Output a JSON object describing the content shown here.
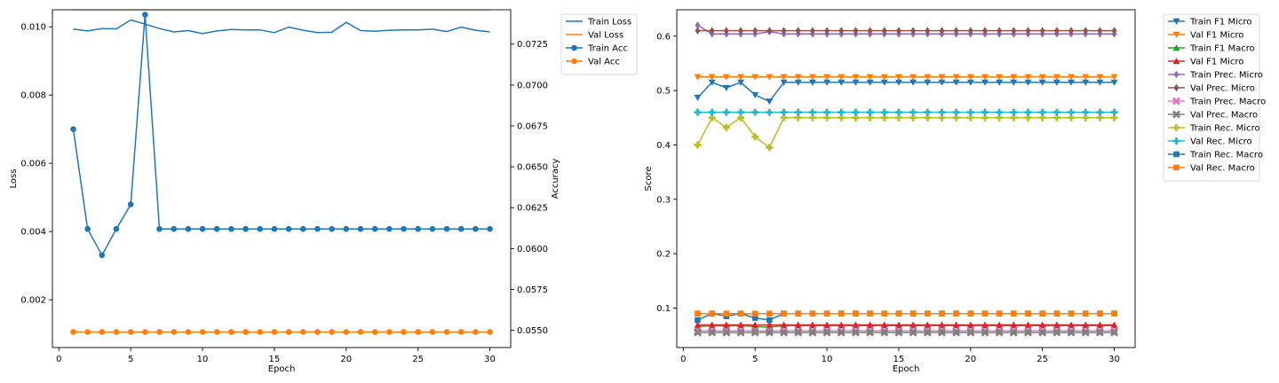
{
  "colors": {
    "blue": "#1f77b4",
    "orange": "#ff7f0e",
    "green": "#2ca02c",
    "red": "#d62728",
    "purple": "#9467bd",
    "brown": "#8c564b",
    "pink": "#e377c2",
    "gray": "#7f7f7f",
    "olive": "#bcbd22",
    "cyan": "#17becf"
  },
  "chart_data": [
    {
      "type": "line",
      "xlabel": "Epoch",
      "ylabel": "Loss",
      "y2label": "Accuracy",
      "xlim": [
        -0.45,
        31.45
      ],
      "ylim": [
        0.0006,
        0.0105
      ],
      "y2lim": [
        0.05395,
        0.0746
      ],
      "xticks": [
        0,
        5,
        10,
        15,
        20,
        25,
        30
      ],
      "yticks": [
        0.002,
        0.004,
        0.006,
        0.008,
        0.01
      ],
      "ytick_labels": [
        "0.002",
        "0.004",
        "0.006",
        "0.008",
        "0.010"
      ],
      "y2ticks": [
        0.055,
        0.0575,
        0.06,
        0.0625,
        0.065,
        0.0675,
        0.07,
        0.0725
      ],
      "y2tick_labels": [
        "0.0550",
        "0.0575",
        "0.0600",
        "0.0625",
        "0.0650",
        "0.0675",
        "0.0700",
        "0.0725"
      ],
      "legend_position": "outside-right",
      "legend": [
        "Train Loss",
        "Val Loss",
        "Train Acc",
        "Val Acc"
      ],
      "x": [
        1,
        2,
        3,
        4,
        5,
        6,
        7,
        8,
        9,
        10,
        11,
        12,
        13,
        14,
        15,
        16,
        17,
        18,
        19,
        20,
        21,
        22,
        23,
        24,
        25,
        26,
        27,
        28,
        29,
        30
      ],
      "series": [
        {
          "name": "Train Loss",
          "axis": "left",
          "color": "blue",
          "marker": "none",
          "values": [
            0.00993,
            0.00988,
            0.00995,
            0.00994,
            0.0102,
            0.01008,
            0.00995,
            0.00985,
            0.00989,
            0.0098,
            0.00988,
            0.00992,
            0.00991,
            0.00991,
            0.00983,
            0.00999,
            0.0099,
            0.00983,
            0.00984,
            0.01013,
            0.00989,
            0.00987,
            0.0099,
            0.00991,
            0.00991,
            0.00993,
            0.00986,
            0.00999,
            0.0099,
            0.00985
          ]
        },
        {
          "name": "Val Loss",
          "axis": "left",
          "color": "orange",
          "marker": "none",
          "values": [
            0.0105,
            0.0105,
            0.0105,
            0.0105,
            0.0105,
            0.0105,
            0.0105,
            0.0105,
            0.0105,
            0.0105,
            0.0105,
            0.0105,
            0.0105,
            0.0105,
            0.0105,
            0.0105,
            0.0105,
            0.0105,
            0.0105,
            0.0105,
            0.0105,
            0.0105,
            0.0105,
            0.0105,
            0.0105,
            0.0105,
            0.0105,
            0.0105,
            0.0105,
            0.0105
          ]
        },
        {
          "name": "Train Acc",
          "axis": "right",
          "color": "blue",
          "marker": "circle",
          "values": [
            0.0673,
            0.0612,
            0.0596,
            0.0612,
            0.0627,
            0.0743,
            0.0612,
            0.0612,
            0.0612,
            0.0612,
            0.0612,
            0.0612,
            0.0612,
            0.0612,
            0.0612,
            0.0612,
            0.0612,
            0.0612,
            0.0612,
            0.0612,
            0.0612,
            0.0612,
            0.0612,
            0.0612,
            0.0612,
            0.0612,
            0.0612,
            0.0612,
            0.0612,
            0.0612
          ]
        },
        {
          "name": "Val Acc",
          "axis": "right",
          "color": "orange",
          "marker": "circle",
          "values": [
            0.0549,
            0.0549,
            0.0549,
            0.0549,
            0.0549,
            0.0549,
            0.0549,
            0.0549,
            0.0549,
            0.0549,
            0.0549,
            0.0549,
            0.0549,
            0.0549,
            0.0549,
            0.0549,
            0.0549,
            0.0549,
            0.0549,
            0.0549,
            0.0549,
            0.0549,
            0.0549,
            0.0549,
            0.0549,
            0.0549,
            0.0549,
            0.0549,
            0.0549,
            0.0549
          ]
        }
      ]
    },
    {
      "type": "line",
      "xlabel": "Epoch",
      "ylabel": "Score",
      "xlim": [
        -0.45,
        31.45
      ],
      "ylim": [
        0.0275,
        0.6485
      ],
      "xticks": [
        0,
        5,
        10,
        15,
        20,
        25,
        30
      ],
      "yticks": [
        0.1,
        0.2,
        0.3,
        0.4,
        0.5,
        0.6
      ],
      "ytick_labels": [
        "0.1",
        "0.2",
        "0.3",
        "0.4",
        "0.5",
        "0.6"
      ],
      "legend_position": "outside-right",
      "legend": [
        "Train F1 Micro",
        "Val F1 Micro",
        "Train F1 Macro",
        "Val F1 Micro",
        "Train Prec. Micro",
        "Val Prec. Micro",
        "Train Prec. Macro",
        "Val Prec. Macro",
        "Train Rec. Micro",
        "Val Rec. Micro",
        "Train Rec. Macro",
        "Val Rec. Macro"
      ],
      "x": [
        1,
        2,
        3,
        4,
        5,
        6,
        7,
        8,
        9,
        10,
        11,
        12,
        13,
        14,
        15,
        16,
        17,
        18,
        19,
        20,
        21,
        22,
        23,
        24,
        25,
        26,
        27,
        28,
        29,
        30
      ],
      "series": [
        {
          "name": "Train F1 Micro",
          "color": "blue",
          "marker": "tri-down",
          "values": [
            0.487,
            0.515,
            0.505,
            0.515,
            0.492,
            0.48,
            0.515,
            0.515,
            0.515,
            0.515,
            0.515,
            0.515,
            0.515,
            0.515,
            0.515,
            0.515,
            0.515,
            0.515,
            0.515,
            0.515,
            0.515,
            0.515,
            0.515,
            0.515,
            0.515,
            0.515,
            0.515,
            0.515,
            0.515,
            0.515
          ]
        },
        {
          "name": "Val F1 Micro",
          "color": "orange",
          "marker": "tri-down",
          "values": [
            0.525,
            0.525,
            0.525,
            0.525,
            0.525,
            0.525,
            0.525,
            0.525,
            0.525,
            0.525,
            0.525,
            0.525,
            0.525,
            0.525,
            0.525,
            0.525,
            0.525,
            0.525,
            0.525,
            0.525,
            0.525,
            0.525,
            0.525,
            0.525,
            0.525,
            0.525,
            0.525,
            0.525,
            0.525,
            0.525
          ]
        },
        {
          "name": "Train F1 Macro",
          "color": "green",
          "marker": "tri-up",
          "values": [
            0.066,
            0.068,
            0.067,
            0.068,
            0.066,
            0.065,
            0.068,
            0.068,
            0.068,
            0.068,
            0.068,
            0.068,
            0.068,
            0.068,
            0.068,
            0.068,
            0.068,
            0.068,
            0.068,
            0.068,
            0.068,
            0.068,
            0.068,
            0.068,
            0.068,
            0.068,
            0.068,
            0.068,
            0.068,
            0.068
          ]
        },
        {
          "name": "Val F1 Micro",
          "color": "red",
          "marker": "tri-up",
          "values": [
            0.069,
            0.069,
            0.069,
            0.069,
            0.069,
            0.069,
            0.069,
            0.069,
            0.069,
            0.069,
            0.069,
            0.069,
            0.069,
            0.069,
            0.069,
            0.069,
            0.069,
            0.069,
            0.069,
            0.069,
            0.069,
            0.069,
            0.069,
            0.069,
            0.069,
            0.069,
            0.069,
            0.069,
            0.069,
            0.069
          ]
        },
        {
          "name": "Train Prec. Micro",
          "color": "purple",
          "marker": "diamond",
          "values": [
            0.62,
            0.604,
            0.604,
            0.604,
            0.604,
            0.608,
            0.604,
            0.604,
            0.604,
            0.604,
            0.604,
            0.604,
            0.604,
            0.604,
            0.604,
            0.604,
            0.604,
            0.604,
            0.604,
            0.604,
            0.604,
            0.604,
            0.604,
            0.604,
            0.604,
            0.604,
            0.604,
            0.604,
            0.604,
            0.604
          ]
        },
        {
          "name": "Val Prec. Micro",
          "color": "brown",
          "marker": "diamond",
          "values": [
            0.61,
            0.61,
            0.61,
            0.61,
            0.61,
            0.61,
            0.61,
            0.61,
            0.61,
            0.61,
            0.61,
            0.61,
            0.61,
            0.61,
            0.61,
            0.61,
            0.61,
            0.61,
            0.61,
            0.61,
            0.61,
            0.61,
            0.61,
            0.61,
            0.61,
            0.61,
            0.61,
            0.61,
            0.61,
            0.61
          ]
        },
        {
          "name": "Train Prec. Macro",
          "color": "pink",
          "marker": "x",
          "values": [
            0.058,
            0.058,
            0.058,
            0.058,
            0.058,
            0.058,
            0.058,
            0.058,
            0.058,
            0.058,
            0.058,
            0.058,
            0.058,
            0.058,
            0.058,
            0.058,
            0.058,
            0.058,
            0.058,
            0.058,
            0.058,
            0.058,
            0.058,
            0.058,
            0.058,
            0.058,
            0.058,
            0.058,
            0.058,
            0.058
          ]
        },
        {
          "name": "Val Prec. Macro",
          "color": "gray",
          "marker": "x",
          "values": [
            0.055,
            0.055,
            0.055,
            0.055,
            0.055,
            0.055,
            0.055,
            0.055,
            0.055,
            0.055,
            0.055,
            0.055,
            0.055,
            0.055,
            0.055,
            0.055,
            0.055,
            0.055,
            0.055,
            0.055,
            0.055,
            0.055,
            0.055,
            0.055,
            0.055,
            0.055,
            0.055,
            0.055,
            0.055,
            0.055
          ]
        },
        {
          "name": "Train Rec. Micro",
          "color": "olive",
          "marker": "plus",
          "values": [
            0.4,
            0.45,
            0.432,
            0.45,
            0.415,
            0.395,
            0.45,
            0.45,
            0.45,
            0.45,
            0.45,
            0.45,
            0.45,
            0.45,
            0.45,
            0.45,
            0.45,
            0.45,
            0.45,
            0.45,
            0.45,
            0.45,
            0.45,
            0.45,
            0.45,
            0.45,
            0.45,
            0.45,
            0.45,
            0.45
          ]
        },
        {
          "name": "Val Rec. Micro",
          "color": "cyan",
          "marker": "plus",
          "values": [
            0.46,
            0.46,
            0.46,
            0.46,
            0.46,
            0.46,
            0.46,
            0.46,
            0.46,
            0.46,
            0.46,
            0.46,
            0.46,
            0.46,
            0.46,
            0.46,
            0.46,
            0.46,
            0.46,
            0.46,
            0.46,
            0.46,
            0.46,
            0.46,
            0.46,
            0.46,
            0.46,
            0.46,
            0.46,
            0.46
          ]
        },
        {
          "name": "Train Rec. Macro",
          "color": "blue",
          "marker": "square",
          "values": [
            0.078,
            0.09,
            0.085,
            0.09,
            0.082,
            0.078,
            0.09,
            0.09,
            0.09,
            0.09,
            0.09,
            0.09,
            0.09,
            0.09,
            0.09,
            0.09,
            0.09,
            0.09,
            0.09,
            0.09,
            0.09,
            0.09,
            0.09,
            0.09,
            0.09,
            0.09,
            0.09,
            0.09,
            0.09,
            0.09
          ]
        },
        {
          "name": "Val Rec. Macro",
          "color": "orange",
          "marker": "square",
          "values": [
            0.09,
            0.09,
            0.09,
            0.09,
            0.09,
            0.09,
            0.09,
            0.09,
            0.09,
            0.09,
            0.09,
            0.09,
            0.09,
            0.09,
            0.09,
            0.09,
            0.09,
            0.09,
            0.09,
            0.09,
            0.09,
            0.09,
            0.09,
            0.09,
            0.09,
            0.09,
            0.09,
            0.09,
            0.09,
            0.09
          ]
        }
      ]
    }
  ]
}
